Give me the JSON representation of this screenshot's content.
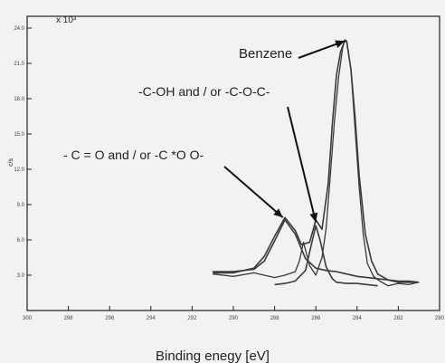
{
  "chart_data": {
    "type": "line",
    "title": "",
    "xlabel": "Binding enegy [eV]",
    "ylabel": "c/s",
    "y_multiplier_label": "x 10³",
    "xlim": [
      300,
      280
    ],
    "ylim": [
      0,
      25
    ],
    "x_ticks": [
      300,
      298,
      296,
      294,
      292,
      290,
      288,
      286,
      284,
      282,
      280
    ],
    "x_tick_labels": [
      "300",
      "298",
      "296",
      "294",
      "292",
      "290",
      "288",
      "286",
      "284",
      "282",
      "280"
    ],
    "y_ticks": [
      3,
      6,
      9,
      12,
      15,
      18,
      21,
      24
    ],
    "y_tick_labels": [
      "3.0",
      "6.0",
      "9.0",
      "12.0",
      "15.0",
      "18.0",
      "21.0",
      "24.0"
    ],
    "grid": false,
    "series": [
      {
        "x": [
          291.0,
          290.0,
          289.0,
          288.5,
          288.0,
          287.5,
          287.0,
          286.7,
          286.3,
          286.0,
          285.7,
          285.4,
          285.2,
          285.0,
          284.8,
          284.6,
          284.5,
          284.3,
          284.1,
          283.9,
          283.6,
          283.3,
          283.0,
          282.5,
          282.0,
          281.5,
          281.0
        ],
        "y": [
          3.2,
          3.2,
          3.6,
          4.6,
          6.3,
          7.9,
          6.8,
          5.6,
          5.8,
          7.7,
          6.9,
          10.8,
          15.8,
          20.0,
          22.0,
          22.9,
          22.8,
          20.5,
          16.5,
          11.5,
          6.5,
          4.2,
          3.1,
          2.6,
          2.4,
          2.4,
          2.4
        ]
      },
      {
        "x": [
          291.0,
          290.0,
          289.0,
          288.5,
          288.0,
          287.5,
          287.0,
          286.5,
          286.0,
          285.5,
          285.0,
          284.5,
          284.0,
          283.5,
          283.0,
          282.5,
          282.0,
          281.5,
          281.0
        ],
        "y": [
          3.3,
          3.3,
          3.5,
          4.2,
          5.9,
          7.7,
          6.5,
          4.4,
          3.6,
          3.4,
          3.3,
          3.1,
          2.9,
          2.8,
          2.7,
          2.6,
          2.5,
          2.5,
          2.4
        ]
      },
      {
        "x": [
          288.0,
          287.5,
          287.0,
          286.5,
          286.3,
          286.0,
          285.8,
          285.5,
          285.2,
          285.0,
          284.5,
          284.0,
          283.5,
          283.0
        ],
        "y": [
          2.2,
          2.3,
          2.5,
          3.4,
          5.0,
          7.2,
          6.0,
          3.7,
          2.7,
          2.4,
          2.3,
          2.3,
          2.2,
          2.1
        ]
      },
      {
        "x": [
          291.0,
          290.0,
          289.0,
          288.0,
          287.5,
          287.0,
          286.8,
          286.6,
          286.3,
          286.0,
          285.7,
          285.5,
          285.3,
          285.1,
          284.9,
          284.7,
          284.6,
          284.5,
          284.3,
          284.1,
          283.9,
          283.7,
          283.5,
          283.2,
          282.9,
          282.5,
          282.0,
          281.5,
          281.0
        ],
        "y": [
          3.1,
          2.9,
          3.2,
          2.8,
          3.0,
          3.3,
          4.2,
          5.8,
          3.8,
          3.0,
          4.5,
          7.0,
          11.5,
          16.0,
          19.8,
          22.3,
          23.0,
          22.9,
          20.5,
          15.5,
          10.5,
          6.5,
          4.0,
          2.9,
          2.5,
          2.1,
          2.3,
          2.2,
          2.4
        ]
      }
    ],
    "annotations": [
      {
        "text": "Benzene",
        "points_to": [
          284.6,
          22.9
        ]
      },
      {
        "text": "-C-OH and / or -C-O-C-",
        "points_to": [
          286.0,
          7.5
        ]
      },
      {
        "text": "- C = O and / or -C *O O-",
        "points_to": [
          287.6,
          7.9
        ]
      }
    ]
  },
  "colors": {
    "curve": "#3a3a3a",
    "axis": "#222222",
    "background": "#f2f2f2"
  }
}
